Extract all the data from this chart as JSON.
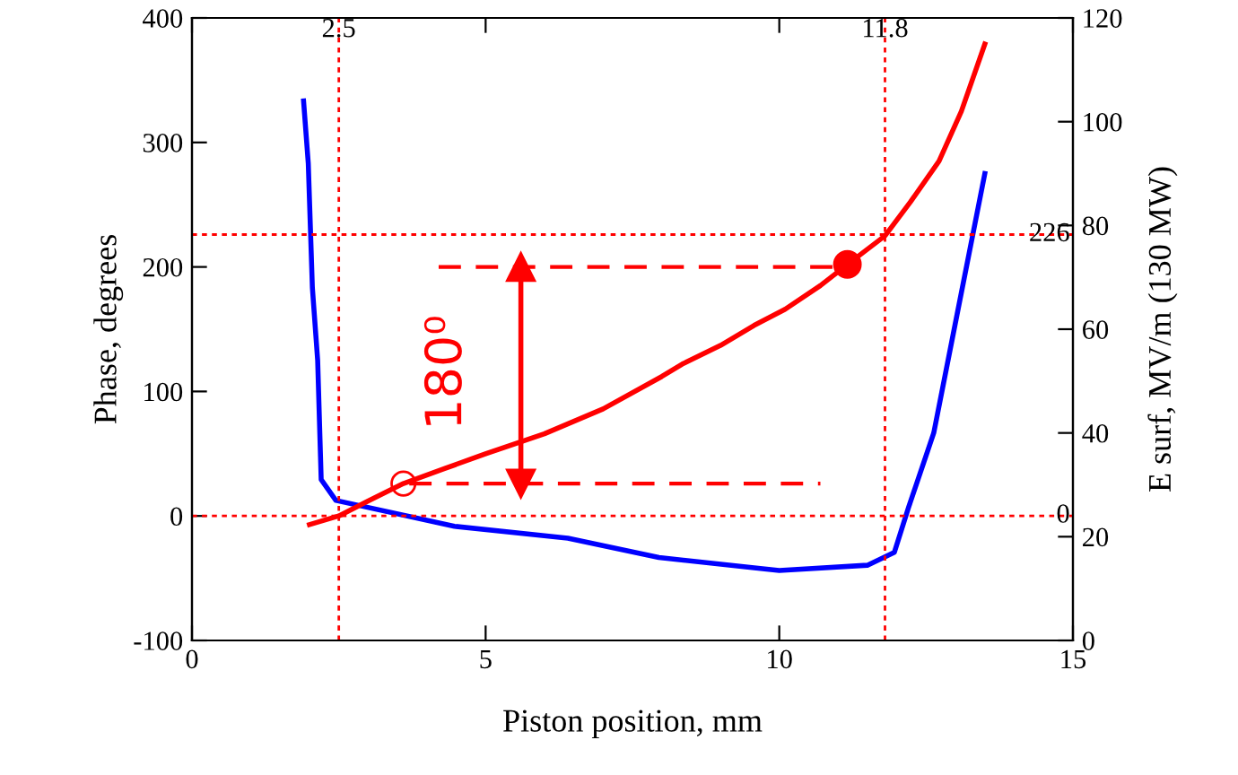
{
  "chart_data": {
    "type": "line",
    "xlabel": "Piston position, mm",
    "ylabel": "Phase, degrees",
    "y2label": "E surf, MV/m (130 MW)",
    "xlim": [
      0,
      15
    ],
    "xticks": [
      0,
      5,
      10,
      15
    ],
    "ylim": [
      -100,
      400
    ],
    "yticks": [
      -100,
      0,
      100,
      200,
      300,
      400
    ],
    "y2lim": [
      0,
      120
    ],
    "y2ticks": [
      0,
      20,
      40,
      60,
      80,
      100,
      120
    ],
    "grid": false,
    "legend": false,
    "series": [
      {
        "color": "#ff0000",
        "x": [
          2.0,
          2.5,
          3.0,
          3.6,
          4.3,
          5,
          6,
          7,
          8,
          8.35,
          9,
          9.57,
          10.1,
          10.7,
          11.16,
          11.8,
          12.23,
          12.72,
          13.1,
          13.5
        ],
        "values": [
          -7,
          0,
          12,
          26,
          38,
          50,
          66,
          86,
          112,
          122,
          137,
          153,
          166,
          185,
          202,
          225,
          252,
          285,
          325,
          379
        ]
      },
      {
        "color": "#0000ff",
        "axis": "y2",
        "x": [
          1.9,
          1.98,
          2.05,
          2.14,
          2.2,
          2.45,
          4.47,
          6.4,
          7.95,
          9.57,
          10.0,
          11.5,
          11.96,
          12.2,
          12.63,
          13.03,
          13.5
        ],
        "values": [
          104,
          92,
          68,
          54,
          31,
          27,
          22,
          19.7,
          16,
          14,
          13.5,
          14.5,
          17,
          25.6,
          40,
          63,
          90
        ]
      },
      {
        "type": "line",
        "color": "#ff0000",
        "line_style": "dashed",
        "x": [
          4.2,
          11.2
        ],
        "values": [
          200,
          200
        ]
      },
      {
        "type": "line",
        "color": "#ff0000",
        "line_style": "dashed",
        "x": [
          3.7,
          10.7
        ],
        "values": [
          26,
          26
        ]
      },
      {
        "type": "line",
        "color": "#ff0000",
        "line_style": "solid",
        "marker": "triangle",
        "x": [
          5.6,
          5.6
        ],
        "values": [
          26,
          200
        ]
      },
      {
        "type": "scatter",
        "color": "#ff0000",
        "marker": "circle",
        "x": [
          11.16
        ],
        "values": [
          202
        ]
      },
      {
        "type": "scatter",
        "color": "#ff0000",
        "marker": "open circle",
        "x": [
          3.6
        ],
        "values": [
          26
        ]
      }
    ],
    "ref_lines": [
      {
        "axis": "x",
        "value": 2.5,
        "label": "2.5",
        "color": "#ff0000",
        "line_style": "dotted"
      },
      {
        "axis": "x",
        "value": 11.8,
        "label": "11.8",
        "color": "#ff0000",
        "line_style": "dotted"
      },
      {
        "axis": "y",
        "value": 226,
        "label": "226",
        "color": "#ff0000",
        "line_style": "dotted"
      },
      {
        "axis": "y",
        "value": 0,
        "label": "0",
        "color": "#ff0000",
        "line_style": "dotted"
      }
    ],
    "annotations": [
      "180⁰"
    ]
  }
}
